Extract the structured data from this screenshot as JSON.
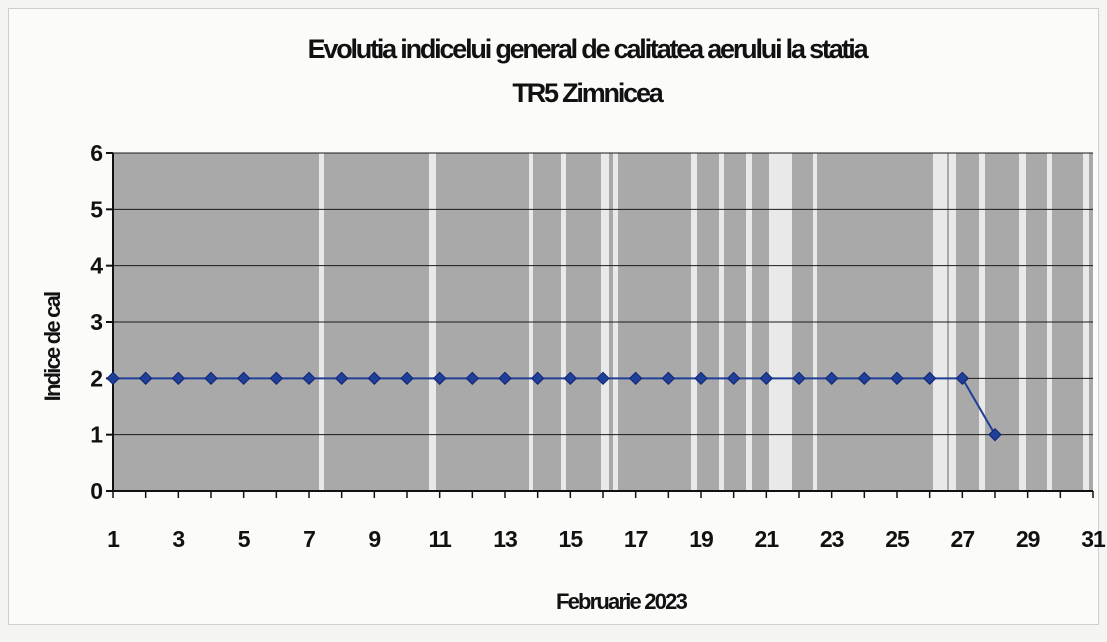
{
  "chart_data": {
    "type": "line",
    "title_line1": "Evolutia indicelui general de calitatea aerului la statia",
    "title_line2": "TR5 Zimnicea",
    "xlabel": "Februarie 2023",
    "ylabel": "Indice de cal",
    "xlim": [
      1,
      31
    ],
    "ylim": [
      0,
      6
    ],
    "x_tick_labels": [
      "1",
      "3",
      "5",
      "7",
      "9",
      "11",
      "13",
      "15",
      "17",
      "19",
      "21",
      "23",
      "25",
      "27",
      "29",
      "31"
    ],
    "y_tick_labels": [
      "0",
      "1",
      "2",
      "3",
      "4",
      "5",
      "6"
    ],
    "grid": "horizontal",
    "legend": "none",
    "series": [
      {
        "color": "#1f3f99",
        "x": [
          1,
          2,
          3,
          4,
          5,
          6,
          7,
          8,
          9,
          10,
          11,
          12,
          13,
          14,
          15,
          16,
          17,
          18,
          19,
          20,
          21,
          22,
          23,
          24,
          25,
          26,
          27,
          28
        ],
        "values": [
          2,
          2,
          2,
          2,
          2,
          2,
          2,
          2,
          2,
          2,
          2,
          2,
          2,
          2,
          2,
          2,
          2,
          2,
          2,
          2,
          2,
          2,
          2,
          2,
          2,
          2,
          2,
          1
        ]
      }
    ],
    "plot_background": "#a9a9a9"
  }
}
